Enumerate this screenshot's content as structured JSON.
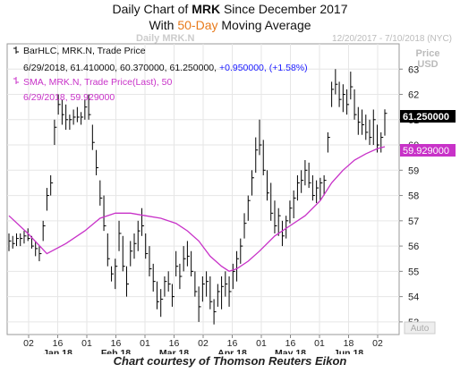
{
  "header": {
    "title_line1_pre": "Daily Chart of ",
    "title_ticker": "MRK",
    "title_line1_post": " Since December 2017",
    "title_line2_pre": "With ",
    "title_highlight": "50-Day",
    "title_line2_post": " Moving Average",
    "highlight_color": "#e87a1b"
  },
  "chart": {
    "watermark": "Daily MRK.N",
    "date_range": "12/20/2017 - 7/10/2018 (NYC)",
    "price_label": "Price",
    "currency_label": "USD",
    "auto_label": "Auto",
    "legend_bar_name": "BarHLC, MRK.N, Trade Price",
    "legend_bar_values": "6/29/2018, 61.410000, 60.370000, 61.250000,",
    "legend_bar_change": "+0.950000, (+1.58%)",
    "legend_sma_name": "SMA, MRK.N, Trade Price(Last), 50",
    "legend_sma_values": "6/29/2018, 59.929000",
    "last_price_label": "61.250000",
    "last_sma_label": "59.929000",
    "bar_color": "#000000",
    "sma_color": "#c832c8",
    "change_color": "#1a1aff"
  },
  "credit": "Chart courtesy of Thomson Reuters Eikon",
  "chart_data": {
    "type": "line",
    "title": "Daily Chart of MRK Since December 2017",
    "subtitle": "With 50-Day Moving Average",
    "ylabel": "Price USD",
    "ylim": [
      52.5,
      64
    ],
    "y_ticks": [
      53,
      54,
      55,
      56,
      57,
      58,
      59,
      60,
      61,
      62,
      63
    ],
    "x_ticks": [
      {
        "label": "02",
        "sub": ""
      },
      {
        "label": "16",
        "sub": "Jan 18"
      },
      {
        "label": "01",
        "sub": ""
      },
      {
        "label": "16",
        "sub": "Feb 18"
      },
      {
        "label": "01",
        "sub": ""
      },
      {
        "label": "16",
        "sub": "Mar 18"
      },
      {
        "label": "02",
        "sub": ""
      },
      {
        "label": "16",
        "sub": "Apr 18"
      },
      {
        "label": "01",
        "sub": ""
      },
      {
        "label": "16",
        "sub": "May 18"
      },
      {
        "label": "01",
        "sub": ""
      },
      {
        "label": "18",
        "sub": "Jun 18"
      },
      {
        "label": "02",
        "sub": ""
      }
    ],
    "series": [
      {
        "name": "BarHLC, MRK.N, Trade Price",
        "kind": "hlc_bars",
        "high": [
          56.5,
          56.4,
          56.5,
          56.5,
          56.6,
          56.7,
          56.4,
          56.2,
          56.0,
          57.0,
          58.3,
          58.8,
          61.0,
          62.0,
          61.8,
          61.6,
          61.2,
          61.4,
          61.5,
          61.3,
          61.8,
          62.0,
          60.8,
          59.8,
          58.6,
          58.0,
          56.5,
          55.2,
          55.5,
          57.0,
          56.4,
          55.2,
          56.2,
          56.5,
          57.0,
          57.5,
          56.5,
          56.0,
          55.3,
          54.6,
          54.3,
          54.8,
          55.0,
          54.5,
          55.8,
          55.3,
          56.0,
          56.2,
          55.8,
          55.0,
          54.4,
          54.8,
          55.0,
          54.8,
          53.9,
          54.5,
          54.8,
          55.0,
          54.8,
          55.3,
          55.8,
          56.3,
          57.3,
          58.0,
          59.0,
          60.3,
          61.0,
          60.2,
          59.0,
          58.5,
          57.8,
          57.5,
          57.0,
          57.2,
          57.8,
          58.2,
          58.8,
          59.0,
          59.4,
          59.3,
          58.8,
          58.6,
          58.7,
          58.8,
          60.5,
          62.5,
          63.0,
          62.5,
          62.4,
          62.2,
          62.9,
          62.2,
          61.5,
          61.4,
          61.2,
          61.0,
          61.4,
          60.8,
          60.5,
          61.41
        ],
        "low": [
          55.8,
          55.9,
          56.0,
          56.0,
          56.1,
          56.2,
          55.9,
          55.6,
          55.4,
          56.2,
          57.4,
          58.0,
          60.0,
          61.2,
          60.8,
          60.6,
          60.6,
          60.8,
          60.9,
          60.8,
          61.0,
          61.0,
          59.8,
          58.8,
          57.6,
          56.6,
          55.2,
          54.6,
          54.3,
          55.8,
          55.0,
          54.0,
          55.2,
          55.5,
          55.8,
          56.4,
          55.5,
          54.8,
          54.2,
          53.5,
          53.2,
          54.0,
          54.2,
          53.6,
          54.8,
          54.3,
          55.0,
          55.2,
          54.8,
          54.0,
          53.0,
          53.8,
          54.0,
          53.5,
          52.9,
          53.6,
          53.5,
          54.0,
          53.6,
          54.3,
          54.6,
          55.3,
          56.3,
          57.0,
          58.0,
          58.9,
          59.6,
          58.8,
          57.8,
          57.0,
          56.5,
          56.4,
          56.0,
          56.3,
          56.9,
          57.1,
          57.8,
          58.1,
          58.4,
          58.3,
          57.8,
          57.7,
          57.8,
          58.0,
          59.7,
          61.5,
          62.0,
          61.5,
          61.3,
          61.2,
          61.8,
          61.0,
          60.4,
          60.4,
          60.2,
          60.0,
          60.0,
          59.7,
          59.7,
          60.37
        ],
        "close": [
          56.2,
          56.1,
          56.3,
          56.3,
          56.4,
          56.3,
          56.0,
          55.9,
          55.7,
          56.8,
          58.0,
          58.5,
          60.7,
          61.6,
          61.2,
          61.0,
          61.0,
          61.1,
          61.1,
          61.1,
          61.5,
          61.2,
          60.1,
          59.1,
          57.9,
          56.8,
          55.5,
          54.9,
          55.2,
          56.5,
          55.2,
          54.5,
          55.8,
          56.1,
          56.6,
          56.8,
          55.7,
          55.1,
          54.6,
          53.8,
          53.9,
          54.6,
          54.5,
          54.0,
          55.2,
          54.8,
          55.5,
          55.6,
          55.0,
          54.2,
          53.6,
          54.5,
          54.6,
          53.8,
          53.4,
          54.2,
          54.4,
          54.5,
          54.2,
          55.0,
          55.5,
          56.0,
          56.9,
          57.8,
          58.7,
          59.8,
          60.0,
          59.0,
          58.1,
          57.3,
          56.8,
          57.2,
          56.4,
          57.0,
          57.5,
          57.9,
          58.5,
          58.6,
          59.0,
          58.5,
          58.0,
          58.3,
          58.5,
          58.6,
          60.3,
          62.2,
          62.4,
          61.8,
          62.0,
          61.6,
          62.3,
          61.2,
          60.9,
          60.8,
          60.5,
          60.3,
          61.0,
          60.0,
          60.3,
          61.25
        ]
      },
      {
        "name": "SMA, MRK.N, Trade Price(Last), 50",
        "kind": "line",
        "points": [
          [
            0,
            57.2
          ],
          [
            5,
            56.5
          ],
          [
            10,
            55.7
          ],
          [
            15,
            56.1
          ],
          [
            20,
            56.6
          ],
          [
            24,
            57.1
          ],
          [
            28,
            57.3
          ],
          [
            32,
            57.3
          ],
          [
            36,
            57.2
          ],
          [
            40,
            57.1
          ],
          [
            44,
            56.9
          ],
          [
            47,
            56.6
          ],
          [
            50,
            56.2
          ],
          [
            53,
            55.6
          ],
          [
            56,
            55.2
          ],
          [
            58,
            55.0
          ],
          [
            60,
            55.1
          ],
          [
            63,
            55.4
          ],
          [
            66,
            55.8
          ],
          [
            70,
            56.4
          ],
          [
            74,
            56.8
          ],
          [
            78,
            57.2
          ],
          [
            82,
            57.8
          ],
          [
            85,
            58.5
          ],
          [
            88,
            59.0
          ],
          [
            91,
            59.4
          ],
          [
            94,
            59.65
          ],
          [
            97,
            59.85
          ],
          [
            99,
            59.93
          ]
        ]
      }
    ]
  }
}
